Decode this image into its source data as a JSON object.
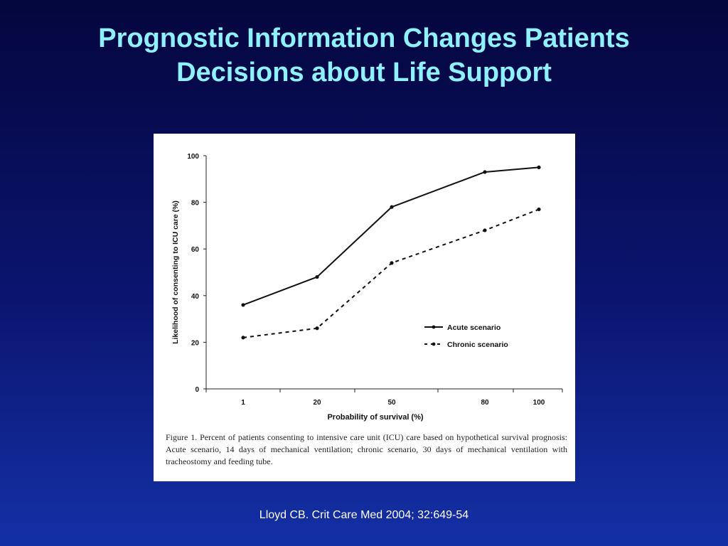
{
  "slide": {
    "title_line1": "Prognostic Information Changes Patients",
    "title_line2": "Decisions about Life Support",
    "citation": "Lloyd CB. Crit Care Med 2004; 32:649-54",
    "title_color": "#8ff0ff"
  },
  "figure": {
    "caption": "Figure 1. Percent of patients consenting to intensive care unit (ICU) care based on hypothetical survival prognosis: Acute scenario, 14 days of mechanical ventilation; chronic scenario, 30 days of mechanical ventilation with tracheostomy and feeding tube."
  },
  "chart_data": {
    "type": "line",
    "xlabel": "Probability of survival (%)",
    "ylabel": "Likelihood of consenting to ICU care (%)",
    "categories": [
      "1",
      "20",
      "50",
      "80",
      "100"
    ],
    "ylim": [
      0,
      100
    ],
    "yticks": [
      "0",
      "20",
      "40",
      "60",
      "80",
      "100"
    ],
    "grid": false,
    "legend_position": "lower-right",
    "series": [
      {
        "name": "Acute scenario",
        "style": "solid",
        "values": [
          36,
          48,
          78,
          93,
          95
        ]
      },
      {
        "name": "Chronic scenario",
        "style": "dashed",
        "values": [
          22,
          26,
          54,
          68,
          77
        ]
      }
    ]
  }
}
